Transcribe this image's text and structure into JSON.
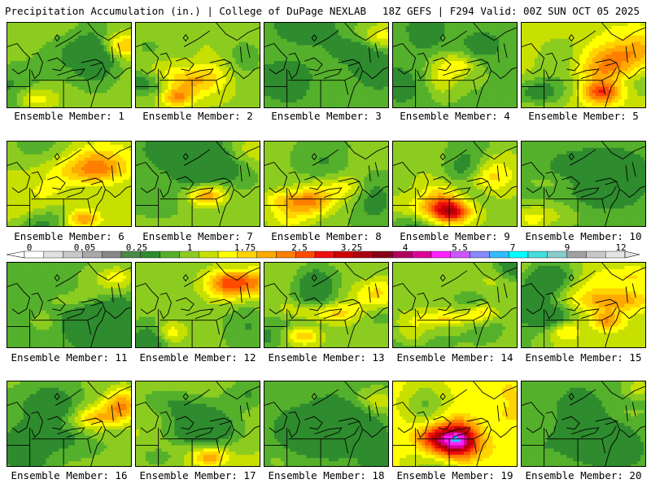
{
  "header": {
    "title_left": "Precipitation Accumulation (in.) | College of DuPage NEXLAB",
    "title_right": "18Z GEFS | F294 Valid: 00Z SUN OCT 05 2025"
  },
  "colorbar": {
    "labels": [
      "0",
      "0.05",
      "0.25",
      "1",
      "1.75",
      "2.5",
      "3.25",
      "4",
      "5.5",
      "7",
      "9",
      "12"
    ],
    "colors": [
      "#ffffff",
      "#e0e0e0",
      "#c8c8c8",
      "#a8a8a8",
      "#888888",
      "#4a8a4a",
      "#2e8b2e",
      "#55b02c",
      "#8ccc20",
      "#c8e000",
      "#ffff00",
      "#ffd400",
      "#ffaa00",
      "#ff7f00",
      "#ff4a00",
      "#ee1010",
      "#cc0000",
      "#aa0010",
      "#880018",
      "#b00060",
      "#dd0099",
      "#ff22ff",
      "#cc55ff",
      "#8888ff",
      "#33bbff",
      "#00ffff",
      "#44dddd",
      "#88cccc",
      "#a0a0a0",
      "#c8c8c8",
      "#e4e4e4"
    ]
  },
  "ensemble": {
    "members": [
      {
        "label": "Ensemble Member: 1"
      },
      {
        "label": "Ensemble Member: 2"
      },
      {
        "label": "Ensemble Member: 3"
      },
      {
        "label": "Ensemble Member: 4"
      },
      {
        "label": "Ensemble Member: 5"
      },
      {
        "label": "Ensemble Member: 6"
      },
      {
        "label": "Ensemble Member: 7"
      },
      {
        "label": "Ensemble Member: 8"
      },
      {
        "label": "Ensemble Member: 9"
      },
      {
        "label": "Ensemble Member: 10"
      },
      {
        "label": "Ensemble Member: 11"
      },
      {
        "label": "Ensemble Member: 12"
      },
      {
        "label": "Ensemble Member: 13"
      },
      {
        "label": "Ensemble Member: 14"
      },
      {
        "label": "Ensemble Member: 15"
      },
      {
        "label": "Ensemble Member: 16"
      },
      {
        "label": "Ensemble Member: 17"
      },
      {
        "label": "Ensemble Member: 18"
      },
      {
        "label": "Ensemble Member: 19"
      },
      {
        "label": "Ensemble Member: 20"
      }
    ]
  }
}
